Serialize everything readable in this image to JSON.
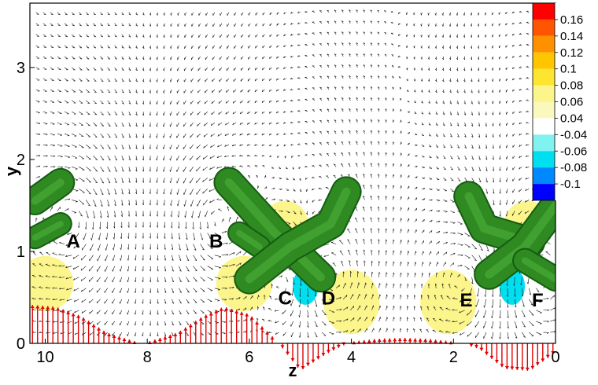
{
  "chart_data": {
    "type": "contour-vector",
    "xlabel": "z",
    "ylabel": "y",
    "x_axis": {
      "min": 0,
      "max": 10.3,
      "reversed": true,
      "ticks": [
        10,
        8,
        6,
        4,
        2,
        0
      ]
    },
    "y_axis": {
      "min": 0,
      "max": 3.7,
      "ticks": [
        0,
        1,
        2,
        3
      ]
    },
    "colorbar": {
      "labels": [
        "0.16",
        "0.14",
        "0.12",
        "0.1",
        "0.08",
        "0.06",
        "0.04",
        "-0.04",
        "-0.06",
        "-0.08",
        "-0.1"
      ],
      "levels": [
        0.18,
        0.16,
        0.14,
        0.12,
        0.1,
        0.08,
        0.06,
        0.04,
        -0.04,
        -0.06,
        -0.08,
        -0.1,
        -0.12
      ],
      "colors": [
        "#ff0000",
        "#ff5500",
        "#ff9100",
        "#ffc500",
        "#fde530",
        "#fbf58c",
        "#fbf8bd",
        "#ffffff",
        "#80f2f0",
        "#00dff0",
        "#0088ff",
        "#0000ff"
      ]
    },
    "contour_regions": [
      {
        "z": 8.1,
        "y": 1.15,
        "rz": 1.2,
        "ry": 0.25,
        "value": -0.04
      },
      {
        "z": 10.0,
        "y": 0.65,
        "rz": 0.55,
        "ry": 0.3,
        "value": 0.06
      },
      {
        "z": 6.1,
        "y": 0.65,
        "rz": 0.55,
        "ry": 0.3,
        "value": 0.06
      },
      {
        "z": 5.3,
        "y": 1.3,
        "rz": 0.45,
        "ry": 0.25,
        "value": 0.06
      },
      {
        "z": 4.85,
        "y": 0.55,
        "rz": 0.45,
        "ry": 0.35,
        "value": -0.04
      },
      {
        "z": 4.9,
        "y": 0.62,
        "rz": 0.25,
        "ry": 0.2,
        "value": -0.08
      },
      {
        "z": 4.0,
        "y": 0.45,
        "rz": 0.55,
        "ry": 0.35,
        "value": 0.06
      },
      {
        "z": 2.1,
        "y": 0.45,
        "rz": 0.55,
        "ry": 0.35,
        "value": 0.06
      },
      {
        "z": 0.9,
        "y": 0.55,
        "rz": 0.45,
        "ry": 0.35,
        "value": -0.04
      },
      {
        "z": 0.85,
        "y": 0.62,
        "rz": 0.25,
        "ry": 0.2,
        "value": -0.08
      },
      {
        "z": 0.55,
        "y": 1.3,
        "rz": 0.45,
        "ry": 0.25,
        "value": 0.06
      }
    ],
    "vortex_isosurfaces": [
      {
        "points": [
          [
            10.2,
            1.55
          ],
          [
            9.7,
            1.75
          ]
        ],
        "width": 0.28
      },
      {
        "points": [
          [
            10.2,
            1.15
          ],
          [
            9.7,
            1.3
          ]
        ],
        "width": 0.22
      },
      {
        "points": [
          [
            6.4,
            1.75
          ],
          [
            5.5,
            1.2
          ],
          [
            4.6,
            0.72
          ]
        ],
        "width": 0.3
      },
      {
        "points": [
          [
            6.2,
            1.2
          ],
          [
            5.8,
            1.05
          ]
        ],
        "width": 0.22
      },
      {
        "points": [
          [
            6.0,
            0.7
          ],
          [
            5.2,
            1.05
          ],
          [
            4.4,
            1.3
          ],
          [
            4.1,
            1.65
          ]
        ],
        "width": 0.3
      },
      {
        "points": [
          [
            1.7,
            1.6
          ],
          [
            1.4,
            1.25
          ],
          [
            0.5,
            1.1
          ]
        ],
        "width": 0.3
      },
      {
        "points": [
          [
            1.3,
            0.75
          ],
          [
            0.6,
            1.05
          ],
          [
            0.0,
            1.5
          ]
        ],
        "width": 0.3
      },
      {
        "points": [
          [
            0.6,
            0.9
          ],
          [
            0.0,
            0.7
          ]
        ],
        "width": 0.24
      }
    ],
    "point_labels": [
      {
        "label": "A",
        "z": 9.45,
        "y": 1.12
      },
      {
        "label": "B",
        "z": 6.65,
        "y": 1.12
      },
      {
        "label": "C",
        "z": 5.3,
        "y": 0.5
      },
      {
        "label": "D",
        "z": 4.45,
        "y": 0.5
      },
      {
        "label": "E",
        "z": 1.75,
        "y": 0.48
      },
      {
        "label": "F",
        "z": 0.35,
        "y": 0.48
      }
    ],
    "wall_profile": {
      "z": [
        10.3,
        9.8,
        9.3,
        8.8,
        8.1,
        7.4,
        6.9,
        6.5,
        6.0,
        5.5,
        5.0,
        4.5,
        4.0,
        3.5,
        3.0,
        2.5,
        2.0,
        1.5,
        1.0,
        0.5,
        0.0
      ],
      "value": [
        0.42,
        0.4,
        0.3,
        0.12,
        0.0,
        0.12,
        0.3,
        0.4,
        0.32,
        0.05,
        -0.3,
        -0.12,
        0.02,
        0.05,
        0.06,
        0.05,
        0.02,
        -0.06,
        -0.28,
        -0.3,
        -0.1
      ]
    }
  }
}
